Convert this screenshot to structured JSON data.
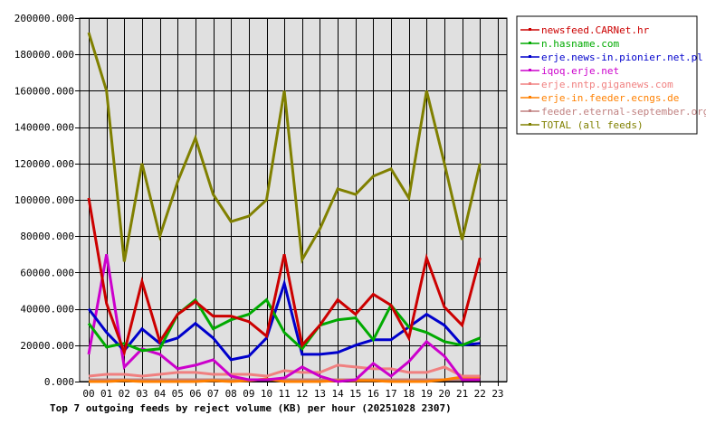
{
  "chart_data": {
    "type": "line",
    "title": "Top 7 outgoing feeds by reject volume (KB) per hour (20251028 2307)",
    "xlabel": "",
    "ylabel": "",
    "ylim": [
      0,
      200000
    ],
    "grid": true,
    "legend_position": "right",
    "y_ticks": [
      "0.000",
      "20000.000",
      "40000.000",
      "60000.000",
      "80000.000",
      "100000.000",
      "120000.000",
      "140000.000",
      "160000.000",
      "180000.000",
      "200000.000"
    ],
    "x": [
      "00",
      "01",
      "02",
      "03",
      "04",
      "05",
      "06",
      "07",
      "08",
      "09",
      "10",
      "11",
      "12",
      "13",
      "14",
      "15",
      "16",
      "17",
      "18",
      "19",
      "20",
      "21",
      "22",
      "23"
    ],
    "series": [
      {
        "name": "newsfeed.CARNet.hr",
        "color": "#cc0000",
        "values": [
          101000,
          43000,
          16000,
          55000,
          22000,
          37000,
          44000,
          36000,
          36000,
          33000,
          25000,
          70000,
          20000,
          31000,
          45000,
          37000,
          48000,
          42000,
          24000,
          68000,
          41000,
          31000,
          68000
        ]
      },
      {
        "name": "n.hasname.com",
        "color": "#00aa00",
        "values": [
          32000,
          19000,
          21000,
          17000,
          18000,
          37000,
          45000,
          29000,
          34000,
          37000,
          45000,
          27000,
          18000,
          31000,
          34000,
          35000,
          23000,
          42000,
          30000,
          27000,
          22000,
          20000,
          24000
        ]
      },
      {
        "name": "erje.news-in.pionier.net.pl",
        "color": "#0000cc",
        "values": [
          40000,
          27000,
          17000,
          29000,
          21000,
          24000,
          32000,
          24000,
          12000,
          14000,
          24000,
          54000,
          15000,
          15000,
          16000,
          20000,
          23000,
          23000,
          30000,
          37000,
          31000,
          20000,
          21000
        ]
      },
      {
        "name": "iqoq.erje.net",
        "color": "#cc00cc",
        "values": [
          15000,
          70000,
          8000,
          18000,
          15000,
          7000,
          9000,
          12000,
          3000,
          1000,
          1000,
          2000,
          8000,
          3000,
          0,
          1000,
          10000,
          3000,
          11000,
          22000,
          14000,
          1000,
          1000
        ]
      },
      {
        "name": "erje.nntp.giganews.com",
        "color": "#f08080",
        "values": [
          3000,
          4000,
          4000,
          3000,
          4000,
          5000,
          5000,
          4000,
          4000,
          4000,
          3000,
          6000,
          5000,
          5000,
          9000,
          8000,
          7000,
          7000,
          5000,
          5000,
          8000,
          3000,
          3000
        ]
      },
      {
        "name": "erje-in.feeder.ecngs.de",
        "color": "#ff8000",
        "values": [
          0,
          0,
          500,
          0,
          0,
          0,
          0,
          500,
          0,
          500,
          1500,
          0,
          0,
          0,
          500,
          500,
          500,
          0,
          0,
          0,
          1000,
          2500,
          2500
        ]
      },
      {
        "name": "feeder.eternal-september.org",
        "color": "#c08080",
        "values": [
          1000,
          1000,
          1000,
          1000,
          1000,
          1000,
          1000,
          1000,
          1000,
          1000,
          1000,
          1000,
          1000,
          1000,
          1000,
          1000,
          1000,
          1000,
          1000,
          1000,
          1000,
          1000,
          1000
        ]
      },
      {
        "name": "TOTAL (all feeds)",
        "color": "#808000",
        "values": [
          192000,
          160000,
          66000,
          120000,
          80000,
          110000,
          134000,
          103000,
          88000,
          91000,
          100000,
          160000,
          67000,
          84000,
          106000,
          103000,
          113000,
          117000,
          101000,
          160000,
          120000,
          78000,
          120000
        ]
      }
    ]
  },
  "plot": {
    "background": "#e0e0e0",
    "grid_color": "#000000"
  }
}
